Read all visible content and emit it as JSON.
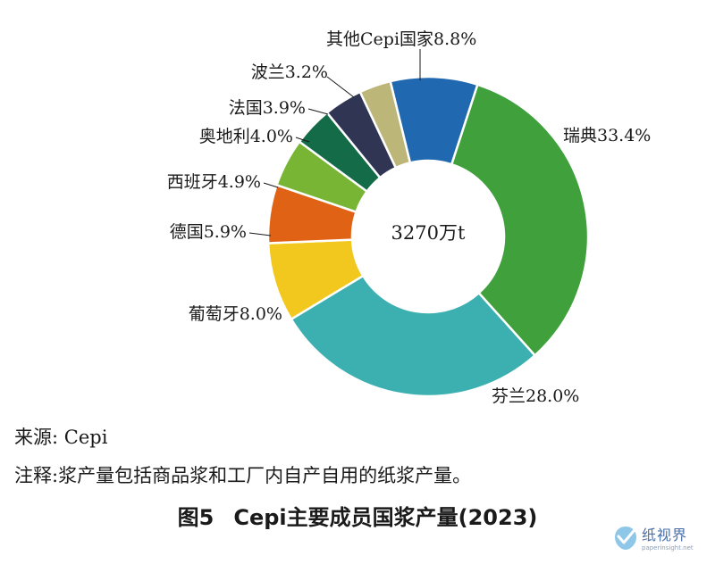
{
  "chart_data": {
    "type": "pie",
    "style": "donut",
    "center_text": "3270万t",
    "slices": [
      {
        "name": "瑞典",
        "value": 33.4,
        "label": "瑞典33.4%",
        "color": "#3fa03c"
      },
      {
        "name": "芬兰",
        "value": 28.0,
        "label": "芬兰28.0%",
        "color": "#3cb0b0"
      },
      {
        "name": "葡萄牙",
        "value": 8.0,
        "label": "葡萄牙8.0%",
        "color": "#f2c81f"
      },
      {
        "name": "德国",
        "value": 5.9,
        "label": "德国5.9%",
        "color": "#e06214"
      },
      {
        "name": "西班牙",
        "value": 4.9,
        "label": "西班牙4.9%",
        "color": "#79b534"
      },
      {
        "name": "奥地利",
        "value": 4.0,
        "label": "奥地利4.0%",
        "color": "#146b48"
      },
      {
        "name": "法国",
        "value": 3.9,
        "label": "法国3.9%",
        "color": "#2f3553"
      },
      {
        "name": "波兰",
        "value": 3.2,
        "label": "波兰3.2%",
        "color": "#bdb679"
      },
      {
        "name": "其他Cepi国家",
        "value": 8.8,
        "label": "其他Cepi国家8.8%",
        "color": "#2068b0"
      }
    ]
  },
  "source": "来源: Cepi",
  "note": "注释:浆产量包括商品浆和工厂内自产自用的纸浆产量。",
  "figure": {
    "number": "图5",
    "title": "Cepi主要成员国浆产量(2023)"
  },
  "watermark": {
    "name": "纸视界",
    "url": "paperinsight.net"
  }
}
